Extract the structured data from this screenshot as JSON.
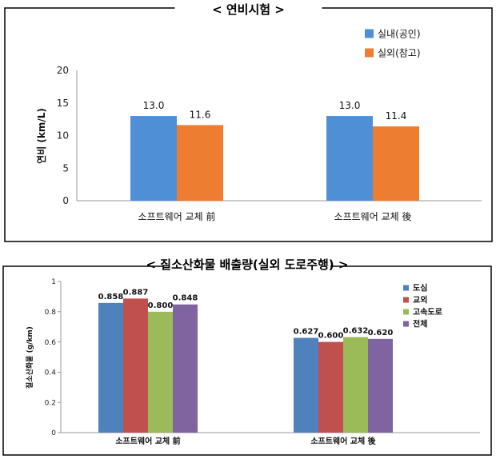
{
  "chart_data": [
    {
      "type": "bar",
      "title": "< 연비시험 >",
      "ylabel": "연비 (km/L)",
      "xlabel": "",
      "ylim": [
        0,
        20
      ],
      "yticks": [
        "0",
        "5",
        "10",
        "15",
        "20"
      ],
      "grid": false,
      "legend": "top-right",
      "categories": [
        "소프트웨어 교체 前",
        "소프트웨어 교체 後"
      ],
      "series": [
        {
          "name": "실내(공인)",
          "color": "#4f8fd5",
          "values": [
            13.0,
            13.0
          ],
          "labels": [
            "13.0",
            "13.0"
          ]
        },
        {
          "name": "실외(참고)",
          "color": "#ed7d31",
          "values": [
            11.6,
            11.4
          ],
          "labels": [
            "11.6",
            "11.4"
          ]
        }
      ]
    },
    {
      "type": "bar",
      "title": "< 질소산화물 배출량(실외 도로주행) >",
      "ylabel": "질소산화물 (g/km)",
      "xlabel": "",
      "ylim": [
        0,
        1
      ],
      "yticks": [
        "0",
        "0.2",
        "0.4",
        "0.6",
        "0.8",
        "1"
      ],
      "grid": false,
      "legend": "top-right",
      "categories": [
        "소프트웨어 교체 前",
        "소프트웨어 교체 後"
      ],
      "series": [
        {
          "name": "도심",
          "color": "#4f81bd",
          "values": [
            0.858,
            0.627
          ],
          "labels": [
            "0.858",
            "0.627"
          ]
        },
        {
          "name": "교외",
          "color": "#c0504d",
          "values": [
            0.887,
            0.6
          ],
          "labels": [
            "0.887",
            "0.600"
          ]
        },
        {
          "name": "고속도로",
          "color": "#9bbb59",
          "values": [
            0.8,
            0.632
          ],
          "labels": [
            "0.800",
            "0.632"
          ]
        },
        {
          "name": "전체",
          "color": "#8064a2",
          "values": [
            0.848,
            0.62
          ],
          "labels": [
            "0.848",
            "0.620"
          ]
        }
      ]
    }
  ]
}
